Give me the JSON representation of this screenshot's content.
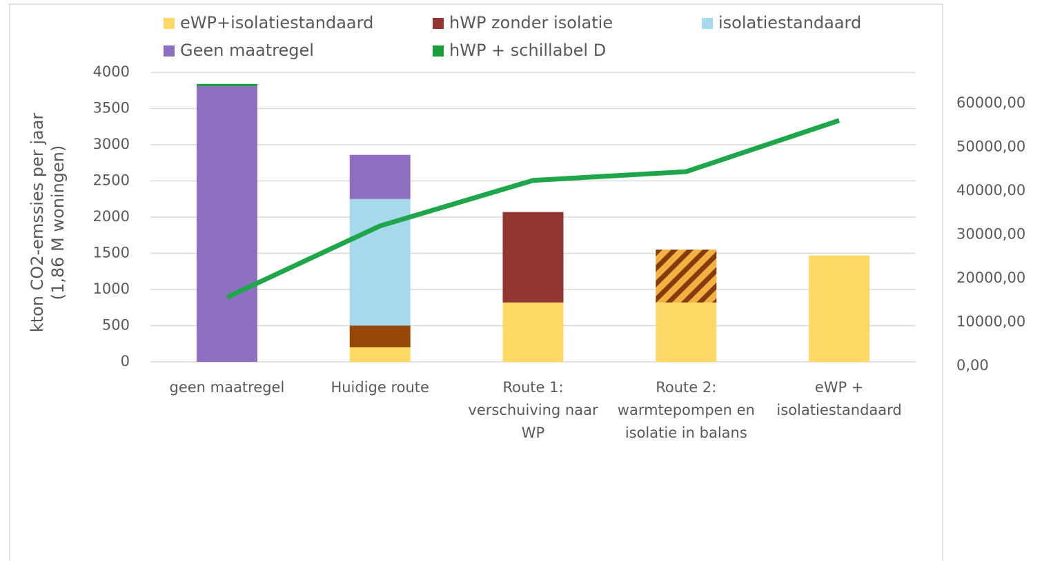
{
  "chart_data": {
    "type": "bar",
    "stacked": true,
    "y_label": "kton CO2-emssies per jaar\n(1,86 M woningen)",
    "categories": [
      "geen maatregel",
      "Huidige route",
      "Route 1:\nverschuiving naar\nWP",
      "Route 2:\nwarmtepompen en\nisolatie in balans",
      "eWP +\nisolatiestandaard"
    ],
    "series": [
      {
        "name": "eWP+isolatiestandaard",
        "color": "#ffd966",
        "values": [
          null,
          200,
          820,
          820,
          1470
        ]
      },
      {
        "color": "#974806",
        "values": [
          null,
          300,
          null,
          null,
          null
        ]
      },
      {
        "name": "hWP zonder isolatie",
        "color": "#943634",
        "values": [
          null,
          null,
          1250,
          null,
          null
        ]
      },
      {
        "color": "#f4b041",
        "hatch_color": "#843c0c",
        "pattern": "hatch",
        "values": [
          null,
          null,
          null,
          730,
          null
        ]
      },
      {
        "name": "isolatiestandaard",
        "color": "#a6d9ec",
        "values": [
          null,
          1750,
          null,
          null,
          null
        ]
      },
      {
        "name": "Geen maatregel",
        "color": "#8e6fc1",
        "values": [
          3810,
          610,
          null,
          null,
          null
        ]
      },
      {
        "name": "hWP + schillabel D",
        "color": "#1a9e3a",
        "values": [
          30,
          null,
          null,
          null,
          null
        ]
      },
      {
        "type": "line",
        "axis": "y2",
        "color": "#1fa64a",
        "values": [
          15700,
          32000,
          42400,
          44400,
          56100
        ]
      }
    ],
    "ylim": [
      0,
      4000
    ],
    "yticks": [
      0,
      500,
      1000,
      1500,
      2000,
      2500,
      3000,
      3500,
      4000
    ],
    "y2lim": [
      0,
      70000
    ],
    "y2ticks": [
      {
        "value": 0,
        "label": "0,00"
      },
      {
        "value": 10000,
        "label": "10000,00"
      },
      {
        "value": 20000,
        "label": "20000,00"
      },
      {
        "value": 30000,
        "label": "30000,00"
      },
      {
        "value": 40000,
        "label": "40000,00"
      },
      {
        "value": 50000,
        "label": "50000,00"
      },
      {
        "value": 60000,
        "label": "60000,00"
      }
    ],
    "grid": true,
    "legend": "top"
  }
}
